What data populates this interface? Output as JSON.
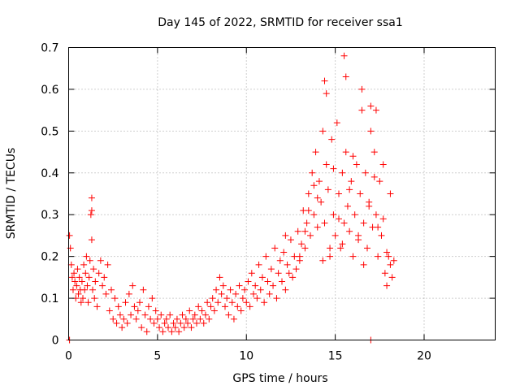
{
  "chart_data": {
    "type": "scatter",
    "title": "Day 145 of 2022, SRMTID for receiver ssa1",
    "xlabel": "GPS time / hours",
    "ylabel": "SRMTID / TECUs",
    "xlim": [
      0,
      24
    ],
    "ylim": [
      0,
      0.7
    ],
    "xticks": [
      0,
      5,
      10,
      15,
      20
    ],
    "yticks": [
      0,
      0.1,
      0.2,
      0.3,
      0.4,
      0.5,
      0.6,
      0.7
    ],
    "xtick_labels": [
      "0",
      "5",
      "10",
      "15",
      "20"
    ],
    "ytick_labels": [
      "0",
      "0.1",
      "0.2",
      "0.3",
      "0.4",
      "0.5",
      "0.6",
      "0.7"
    ],
    "grid": true,
    "marker": "+",
    "series": [
      {
        "name": "ssa1",
        "color": "#ff0000",
        "x": [
          0.05,
          0.1,
          0.15,
          0.2,
          0.25,
          0.3,
          0.35,
          0.4,
          0.45,
          0.5,
          0.55,
          0.6,
          0.65,
          0.7,
          0.75,
          0.8,
          0.85,
          0.9,
          0.95,
          1.0,
          1.05,
          1.1,
          1.15,
          1.2,
          1.25,
          1.3,
          1.35,
          1.4,
          1.45,
          1.5,
          1.6,
          1.7,
          1.8,
          1.9,
          2.0,
          2.1,
          2.2,
          2.3,
          2.4,
          2.5,
          2.6,
          2.7,
          2.8,
          2.9,
          3.0,
          3.1,
          3.2,
          3.3,
          3.4,
          3.5,
          3.6,
          3.7,
          3.8,
          3.9,
          4.0,
          4.1,
          4.2,
          4.3,
          4.4,
          4.5,
          4.6,
          4.7,
          4.8,
          4.9,
          5.0,
          5.1,
          5.2,
          5.3,
          5.4,
          5.5,
          5.6,
          5.7,
          5.8,
          5.9,
          6.0,
          6.1,
          6.2,
          6.3,
          6.4,
          6.5,
          6.6,
          6.7,
          6.8,
          6.9,
          7.0,
          7.1,
          7.2,
          7.3,
          7.4,
          7.5,
          7.6,
          7.7,
          7.8,
          7.9,
          8.0,
          8.1,
          8.2,
          8.3,
          8.4,
          8.5,
          8.6,
          8.7,
          8.8,
          8.9,
          9.0,
          9.1,
          9.2,
          9.3,
          9.4,
          9.5,
          9.6,
          9.7,
          9.8,
          9.9,
          10.0,
          10.1,
          10.2,
          10.3,
          10.4,
          10.5,
          10.6,
          10.7,
          10.8,
          10.9,
          11.0,
          11.1,
          11.2,
          11.3,
          11.4,
          11.5,
          11.6,
          11.7,
          11.8,
          11.9,
          12.0,
          12.1,
          12.2,
          12.3,
          12.4,
          12.5,
          12.6,
          12.7,
          12.8,
          12.9,
          13.0,
          13.1,
          13.2,
          13.3,
          13.4,
          13.5,
          13.6,
          13.7,
          13.8,
          13.9,
          14.0,
          14.1,
          14.2,
          14.3,
          14.4,
          14.5,
          14.6,
          14.7,
          14.8,
          14.9,
          15.0,
          15.1,
          15.2,
          15.3,
          15.4,
          15.5,
          15.6,
          15.7,
          15.8,
          15.9,
          16.0,
          16.1,
          16.2,
          16.3,
          16.4,
          16.5,
          16.6,
          16.7,
          16.8,
          16.9,
          17.0,
          17.1,
          17.2,
          17.3,
          17.4,
          17.5,
          17.6,
          17.7,
          17.8,
          17.9,
          18.0,
          18.1,
          18.2,
          18.3,
          1.3,
          1.3,
          14.4,
          14.5,
          15.5,
          15.6,
          16.5,
          17.0,
          17.3,
          0.05,
          17.0,
          12.2,
          13.0,
          13.5,
          14.0,
          14.7,
          15.2,
          15.8,
          16.3,
          16.9,
          17.4,
          17.9,
          13.3,
          13.8,
          14.3,
          14.9,
          15.4,
          16.0,
          16.6,
          17.2,
          17.7,
          18.1
        ],
        "y": [
          0.25,
          0.22,
          0.18,
          0.15,
          0.12,
          0.16,
          0.14,
          0.1,
          0.13,
          0.17,
          0.11,
          0.15,
          0.12,
          0.09,
          0.14,
          0.1,
          0.18,
          0.12,
          0.16,
          0.2,
          0.13,
          0.09,
          0.15,
          0.19,
          0.3,
          0.24,
          0.12,
          0.17,
          0.1,
          0.14,
          0.08,
          0.16,
          0.19,
          0.13,
          0.15,
          0.11,
          0.18,
          0.07,
          0.12,
          0.05,
          0.1,
          0.04,
          0.08,
          0.06,
          0.03,
          0.05,
          0.09,
          0.04,
          0.11,
          0.06,
          0.13,
          0.08,
          0.05,
          0.07,
          0.09,
          0.03,
          0.12,
          0.06,
          0.02,
          0.08,
          0.05,
          0.1,
          0.04,
          0.07,
          0.05,
          0.03,
          0.06,
          0.02,
          0.04,
          0.05,
          0.03,
          0.06,
          0.02,
          0.04,
          0.03,
          0.05,
          0.02,
          0.04,
          0.06,
          0.03,
          0.05,
          0.04,
          0.07,
          0.03,
          0.05,
          0.06,
          0.04,
          0.08,
          0.05,
          0.07,
          0.04,
          0.06,
          0.09,
          0.05,
          0.08,
          0.1,
          0.07,
          0.12,
          0.09,
          0.15,
          0.11,
          0.13,
          0.08,
          0.1,
          0.06,
          0.12,
          0.09,
          0.05,
          0.11,
          0.08,
          0.13,
          0.07,
          0.1,
          0.12,
          0.09,
          0.14,
          0.08,
          0.16,
          0.11,
          0.13,
          0.1,
          0.18,
          0.12,
          0.15,
          0.09,
          0.2,
          0.14,
          0.11,
          0.17,
          0.13,
          0.22,
          0.1,
          0.16,
          0.19,
          0.14,
          0.21,
          0.12,
          0.18,
          0.16,
          0.24,
          0.15,
          0.2,
          0.17,
          0.26,
          0.19,
          0.23,
          0.31,
          0.22,
          0.28,
          0.35,
          0.25,
          0.4,
          0.3,
          0.45,
          0.27,
          0.38,
          0.33,
          0.5,
          0.28,
          0.42,
          0.36,
          0.2,
          0.48,
          0.3,
          0.25,
          0.52,
          0.35,
          0.22,
          0.4,
          0.28,
          0.45,
          0.32,
          0.26,
          0.38,
          0.2,
          0.3,
          0.42,
          0.25,
          0.35,
          0.55,
          0.28,
          0.4,
          0.22,
          0.32,
          0.5,
          0.27,
          0.45,
          0.3,
          0.2,
          0.38,
          0.25,
          0.42,
          0.16,
          0.13,
          0.2,
          0.18,
          0.15,
          0.19,
          0.34,
          0.31,
          0.62,
          0.59,
          0.68,
          0.63,
          0.6,
          0.56,
          0.55,
          0.0,
          0.0,
          0.25,
          0.2,
          0.31,
          0.34,
          0.22,
          0.29,
          0.36,
          0.24,
          0.33,
          0.27,
          0.21,
          0.26,
          0.37,
          0.19,
          0.41,
          0.23,
          0.44,
          0.18,
          0.39,
          0.29,
          0.35
        ]
      }
    ]
  }
}
